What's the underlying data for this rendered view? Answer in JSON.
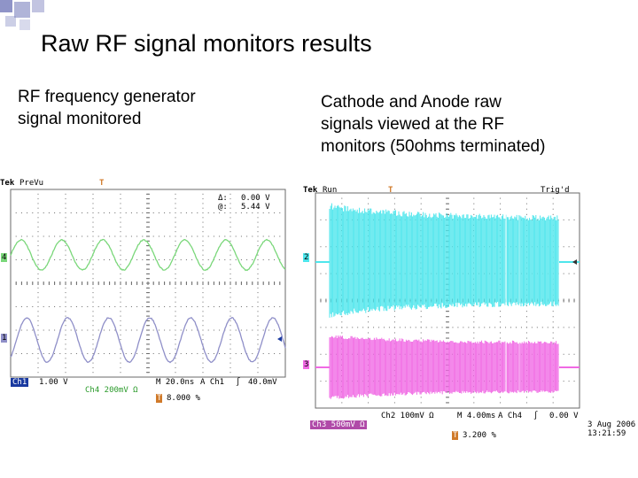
{
  "slide": {
    "title": "Raw RF signal monitors results",
    "left_caption": [
      "RF frequency generator",
      "signal monitored"
    ],
    "right_caption": [
      "Cathode and Anode raw",
      "signals viewed at the RF",
      "monitors (50ohms terminated)"
    ]
  },
  "scope_left": {
    "brand": "Tek",
    "mode": "PreVu",
    "trigger_marker": "T",
    "delta_label": "Δ:",
    "delta_value": "0.00 V",
    "at_label": "@:",
    "at_value": "5.44 V",
    "ch4_marker": "4",
    "ch1_marker": "1",
    "ch1_scale_label": "Ch1",
    "ch1_scale": "1.00 V",
    "timebase": "M 20.0ns",
    "trigger_source": "A  Ch1",
    "trigger_slope": "∫",
    "trigger_level": "40.0mV",
    "ch4_scale": "Ch4   200mV Ω",
    "position_marker": "T",
    "position": "8.000 %",
    "colors": {
      "ch4": "#7ad77a",
      "ch1": "#8f8fc8",
      "grid": "#6a6a6a"
    }
  },
  "scope_right": {
    "brand": "Tek",
    "mode": "Run",
    "trigger_marker": "T",
    "trig_status": "Trig'd",
    "ch2_marker": "2",
    "ch3_marker": "3",
    "ch2_scale": "Ch2   100mV Ω",
    "timebase": "M 4.00ms",
    "trigger_source": "A  Ch4",
    "trigger_slope": "∫",
    "trigger_level": "0.00 V",
    "ch3_scale": "Ch3   500mV Ω",
    "position_marker": "T",
    "position": "3.200 %",
    "date": "3 Aug 2006",
    "time": "13:21:59",
    "colors": {
      "ch2": "#4ee6ec",
      "ch3": "#f06ae4",
      "grid": "#6a6a6a"
    }
  }
}
